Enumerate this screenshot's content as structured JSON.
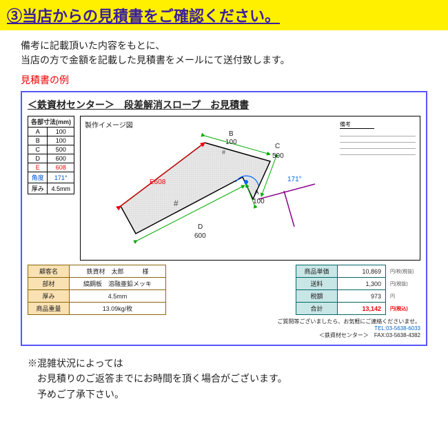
{
  "header": "③当店からの見積書をご確認ください。",
  "intro": "備考に記載頂いた内容をもとに、\n当店の方で金額を記載した見積書をメールにて送付致します。",
  "example_label": "見積書の例",
  "doc": {
    "title": "＜鉄資材センター＞　段差解消スロープ　お見積書",
    "dim_header": "各部寸法(mm)",
    "dims": [
      {
        "k": "A",
        "v": "100"
      },
      {
        "k": "B",
        "v": "100"
      },
      {
        "k": "C",
        "v": "500"
      },
      {
        "k": "D",
        "v": "600"
      },
      {
        "k": "E",
        "v": "608",
        "color": "#e00"
      },
      {
        "k": "角度",
        "v": "171°",
        "color": "#0055cc"
      },
      {
        "k": "厚み",
        "v": "4.5mm"
      }
    ],
    "diagram_title": "製作イメージ図",
    "memo_label": "備考",
    "labels": {
      "A": "A",
      "B": "B",
      "C": "C",
      "D": "D",
      "E": "E",
      "vA": "100",
      "vB": "100",
      "vC": "500",
      "vD": "600",
      "vE": "608",
      "ang": "171°"
    },
    "info": [
      {
        "k": "顧客名",
        "v": "鉄資材　太郎　　　様"
      },
      {
        "k": "部材",
        "v": "縞鋼板　溶融亜鉛メッキ"
      },
      {
        "k": "厚み",
        "v": "4.5mm"
      },
      {
        "k": "商品重量",
        "v": "13.09kg/枚"
      }
    ],
    "price": [
      {
        "k": "商品単価",
        "v": "10,869",
        "u": "円/枚(税抜)"
      },
      {
        "k": "送料",
        "v": "1,300",
        "u": "円(税抜)"
      },
      {
        "k": "税額",
        "v": "973",
        "u": "円"
      },
      {
        "k": "合計",
        "v": "13,142",
        "u": "円(税込)",
        "total": true
      }
    ],
    "contact_line1": "ご質問等ございましたら、お気軽にご連絡くださいませ。",
    "contact_tel": "TEL:03-5638-6033",
    "contact_fax": "＜鉄資材センター＞　FAX:03-5638-4382"
  },
  "note": "※混雑状況によっては\n　お見積りのご返答までにお時間を頂く場合がございます。\n　予めご了承下さい。"
}
